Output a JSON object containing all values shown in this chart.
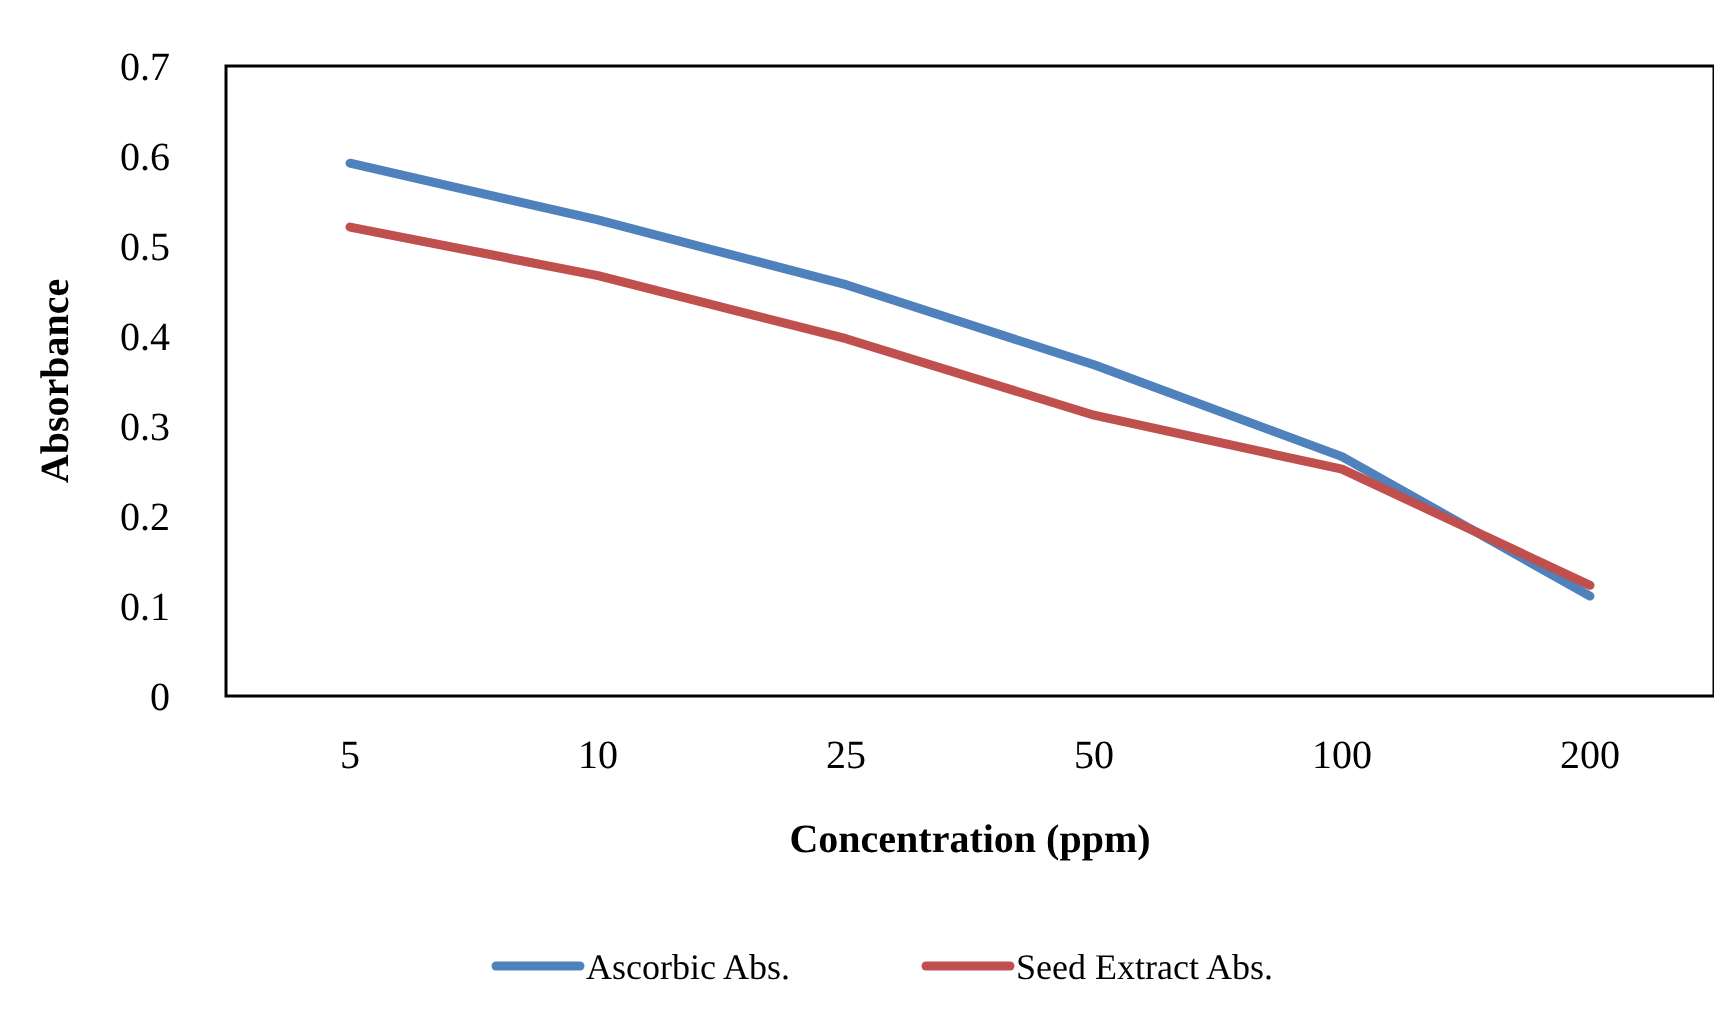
{
  "chart_data": {
    "type": "line",
    "xlabel": "Concentration (ppm)",
    "ylabel": "Absorbance",
    "categories": [
      "5",
      "10",
      "25",
      "50",
      "100",
      "200"
    ],
    "series": [
      {
        "name": "Ascorbic Abs.",
        "color": "#4f81bd",
        "values": [
          0.592,
          0.529,
          0.457,
          0.368,
          0.266,
          0.111
        ]
      },
      {
        "name": "Seed Extract Abs.",
        "color": "#c0504d",
        "values": [
          0.521,
          0.467,
          0.397,
          0.312,
          0.252,
          0.123
        ]
      }
    ],
    "ylim": [
      0,
      0.7
    ],
    "yticks": [
      0,
      0.1,
      0.2,
      0.3,
      0.4,
      0.5,
      0.6,
      0.7
    ],
    "grid": false,
    "legend": "bottom",
    "marker": "none",
    "line_style": "solid"
  }
}
